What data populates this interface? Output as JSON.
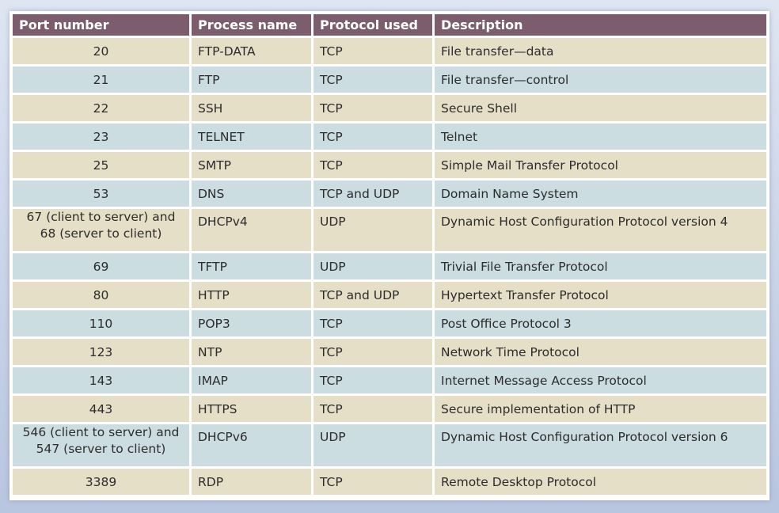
{
  "table": {
    "headers": [
      "Port number",
      "Process name",
      "Protocol used",
      "Description"
    ],
    "rows": [
      {
        "port": "20",
        "process": "FTP-DATA",
        "protocol": "TCP",
        "description": "File transfer—data"
      },
      {
        "port": "21",
        "process": "FTP",
        "protocol": "TCP",
        "description": "File transfer—control"
      },
      {
        "port": "22",
        "process": "SSH",
        "protocol": "TCP",
        "description": "Secure Shell"
      },
      {
        "port": "23",
        "process": "TELNET",
        "protocol": "TCP",
        "description": "Telnet"
      },
      {
        "port": "25",
        "process": "SMTP",
        "protocol": "TCP",
        "description": "Simple Mail Transfer Protocol"
      },
      {
        "port": "53",
        "process": "DNS",
        "protocol": "TCP and UDP",
        "description": "Domain Name System"
      },
      {
        "port_line1": "67 (client to server) and",
        "port_line2": "68 (server to client)",
        "process": "DHCPv4",
        "protocol": "UDP",
        "description": "Dynamic Host Configuration Protocol version 4"
      },
      {
        "port": "69",
        "process": "TFTP",
        "protocol": "UDP",
        "description": "Trivial File Transfer Protocol"
      },
      {
        "port": "80",
        "process": "HTTP",
        "protocol": "TCP and UDP",
        "description": "Hypertext Transfer Protocol"
      },
      {
        "port": "110",
        "process": "POP3",
        "protocol": "TCP",
        "description": "Post Office Protocol 3"
      },
      {
        "port": "123",
        "process": "NTP",
        "protocol": "TCP",
        "description": "Network Time Protocol"
      },
      {
        "port": "143",
        "process": "IMAP",
        "protocol": "TCP",
        "description": "Internet Message Access Protocol"
      },
      {
        "port": "443",
        "process": "HTTPS",
        "protocol": "TCP",
        "description": "Secure implementation of HTTP"
      },
      {
        "port_line1": "546 (client to server) and",
        "port_line2": "547 (server to client)",
        "process": "DHCPv6",
        "protocol": "UDP",
        "description": "Dynamic Host Configuration Protocol version 6"
      },
      {
        "port": "3389",
        "process": "RDP",
        "protocol": "TCP",
        "description": "Remote Desktop Protocol"
      }
    ]
  },
  "colors": {
    "header": "#7b5d6d",
    "row_tan": "#e5dfc8",
    "row_blue": "#cbdde0"
  }
}
